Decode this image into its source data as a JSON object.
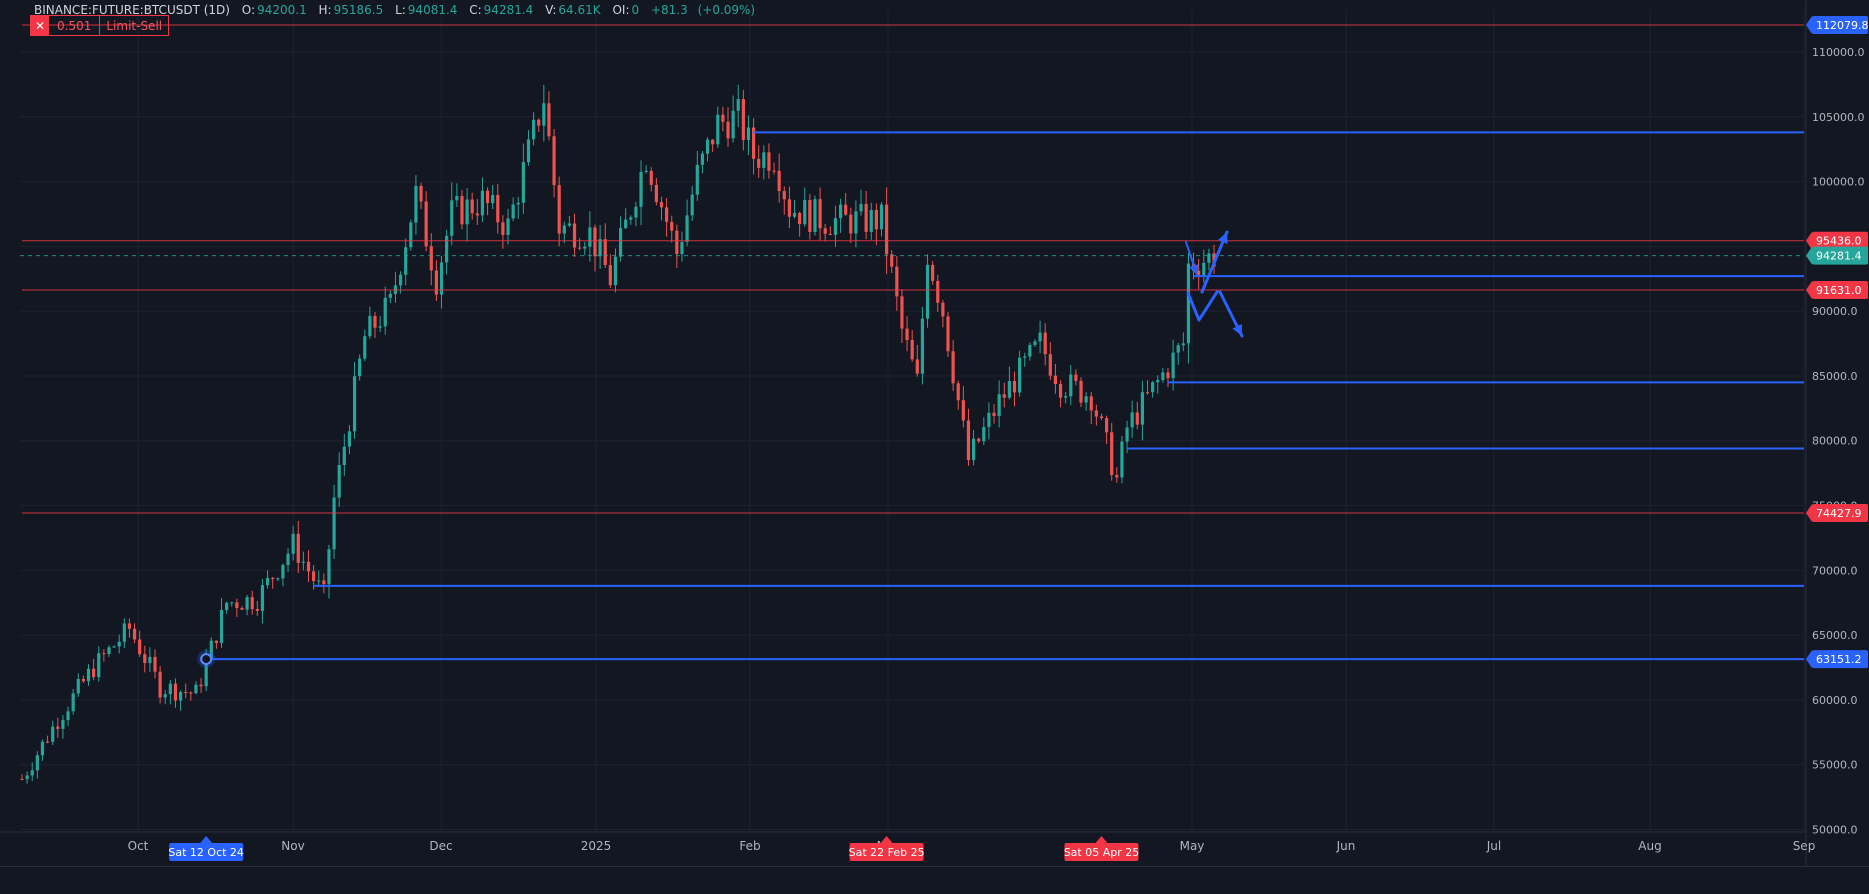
{
  "header": {
    "symbol": "BINANCE:FUTURE:BTCUSDT (1D)",
    "open_label": "O:",
    "open": "94200.1",
    "high_label": "H:",
    "high": "95186.5",
    "low_label": "L:",
    "low": "94081.4",
    "close_label": "C:",
    "close": "94281.4",
    "volume_label": "V:",
    "volume": "64.61K",
    "oi_label": "OI:",
    "oi": "0",
    "change": "+81.3",
    "change_pct": "(+0.09%)"
  },
  "order": {
    "qty": "0.501",
    "type": "Limit-Sell",
    "close_symbol": "✕"
  },
  "chart_data": {
    "type": "candlestick",
    "symbol": "BINANCE:FUTURE:BTCUSDT",
    "interval": "1D",
    "x_ticks": [
      "Oct",
      "Nov",
      "Dec",
      "2025",
      "Feb",
      "Mar",
      "May",
      "Jun",
      "Jul",
      "Aug",
      "Sep"
    ],
    "y_ticks": [
      "110000.0",
      "105000.0",
      "100000.0",
      "95000.0",
      "90000.0",
      "85000.0",
      "80000.0",
      "75000.0",
      "70000.0",
      "65000.0",
      "60000.0",
      "55000.0",
      "50000.0"
    ],
    "ylim": [
      50000,
      110000
    ],
    "grid": true,
    "current_price": 94281.4,
    "current_price_label": "94281.4",
    "price_path": [
      [
        "2024-09-06",
        53900
      ],
      [
        "2024-09-13",
        58500
      ],
      [
        "2024-09-20",
        62500
      ],
      [
        "2024-09-27",
        65500
      ],
      [
        "2024-10-03",
        61000
      ],
      [
        "2024-10-10",
        60500
      ],
      [
        "2024-10-12",
        62800
      ],
      [
        "2024-10-16",
        67500
      ],
      [
        "2024-10-22",
        67800
      ],
      [
        "2024-10-29",
        72000
      ],
      [
        "2024-11-04",
        68000
      ],
      [
        "2024-11-06",
        75500
      ],
      [
        "2024-11-12",
        88000
      ],
      [
        "2024-11-17",
        90500
      ],
      [
        "2024-11-22",
        99000
      ],
      [
        "2024-11-26",
        92500
      ],
      [
        "2024-11-29",
        97500
      ],
      [
        "2024-12-05",
        98500
      ],
      [
        "2024-12-10",
        96500
      ],
      [
        "2024-12-17",
        106500
      ],
      [
        "2024-12-20",
        96500
      ],
      [
        "2024-12-26",
        96000
      ],
      [
        "2024-12-30",
        92500
      ],
      [
        "2025-01-06",
        102000
      ],
      [
        "2025-01-12",
        94500
      ],
      [
        "2025-01-16",
        100500
      ],
      [
        "2025-01-20",
        104500
      ],
      [
        "2025-01-24",
        105000
      ],
      [
        "2025-01-27",
        102000
      ],
      [
        "2025-01-31",
        102000
      ],
      [
        "2025-02-03",
        98000
      ],
      [
        "2025-02-10",
        97000
      ],
      [
        "2025-02-21",
        97000
      ],
      [
        "2025-02-25",
        88500
      ],
      [
        "2025-02-28",
        84500
      ],
      [
        "2025-03-02",
        94500
      ],
      [
        "2025-03-05",
        90000
      ],
      [
        "2025-03-10",
        78500
      ],
      [
        "2025-03-16",
        83000
      ],
      [
        "2025-03-24",
        87500
      ],
      [
        "2025-03-28",
        84500
      ],
      [
        "2025-04-03",
        83500
      ],
      [
        "2025-04-08",
        77000
      ],
      [
        "2025-04-10",
        81000
      ],
      [
        "2025-04-16",
        84500
      ],
      [
        "2025-04-21",
        87500
      ],
      [
        "2025-04-22",
        93500
      ],
      [
        "2025-04-27",
        94300
      ]
    ],
    "horizontal_lines": [
      {
        "price": 112079.8,
        "start": "2024-09-06",
        "color": "#f23645",
        "label": "112079.8",
        "label_color": "#2962ff"
      },
      {
        "price": 103800,
        "start": "2025-01-27",
        "color": "#2962ff",
        "label": ""
      },
      {
        "price": 95436.0,
        "start": "2024-09-06",
        "color": "#f23645",
        "label": "95436.0",
        "label_color": "#f23645"
      },
      {
        "price": 92700,
        "start": "2025-04-23",
        "color": "#2962ff",
        "label": ""
      },
      {
        "price": 91631.0,
        "start": "2024-09-06",
        "color": "#f23645",
        "label": "91631.0",
        "label_color": "#f23645"
      },
      {
        "price": 84500,
        "start": "2025-04-18",
        "color": "#2962ff",
        "label": ""
      },
      {
        "price": 79400,
        "start": "2025-04-10",
        "color": "#2962ff",
        "label": ""
      },
      {
        "price": 74427.9,
        "start": "2024-09-06",
        "color": "#f23645",
        "label": "74427.9",
        "label_color": "#f23645"
      },
      {
        "price": 68800,
        "start": "2024-11-02",
        "color": "#2962ff",
        "label": ""
      },
      {
        "price": 63151.2,
        "start": "2024-10-12",
        "color": "#2962ff",
        "label": "63151.2",
        "label_color": "#2962ff"
      }
    ],
    "date_markers": [
      {
        "label": "Sat 12 Oct 24",
        "date": "2024-10-12",
        "color": "#2962ff"
      },
      {
        "label": "Sat 22 Feb 25",
        "date": "2025-02-22",
        "color": "#f23645"
      },
      {
        "label": "Sat 05 Apr 25",
        "date": "2025-04-05",
        "color": "#f23645"
      }
    ],
    "up_color": "#26a69a",
    "down_color": "#ef5350",
    "drawing_color": "#2962ff"
  }
}
